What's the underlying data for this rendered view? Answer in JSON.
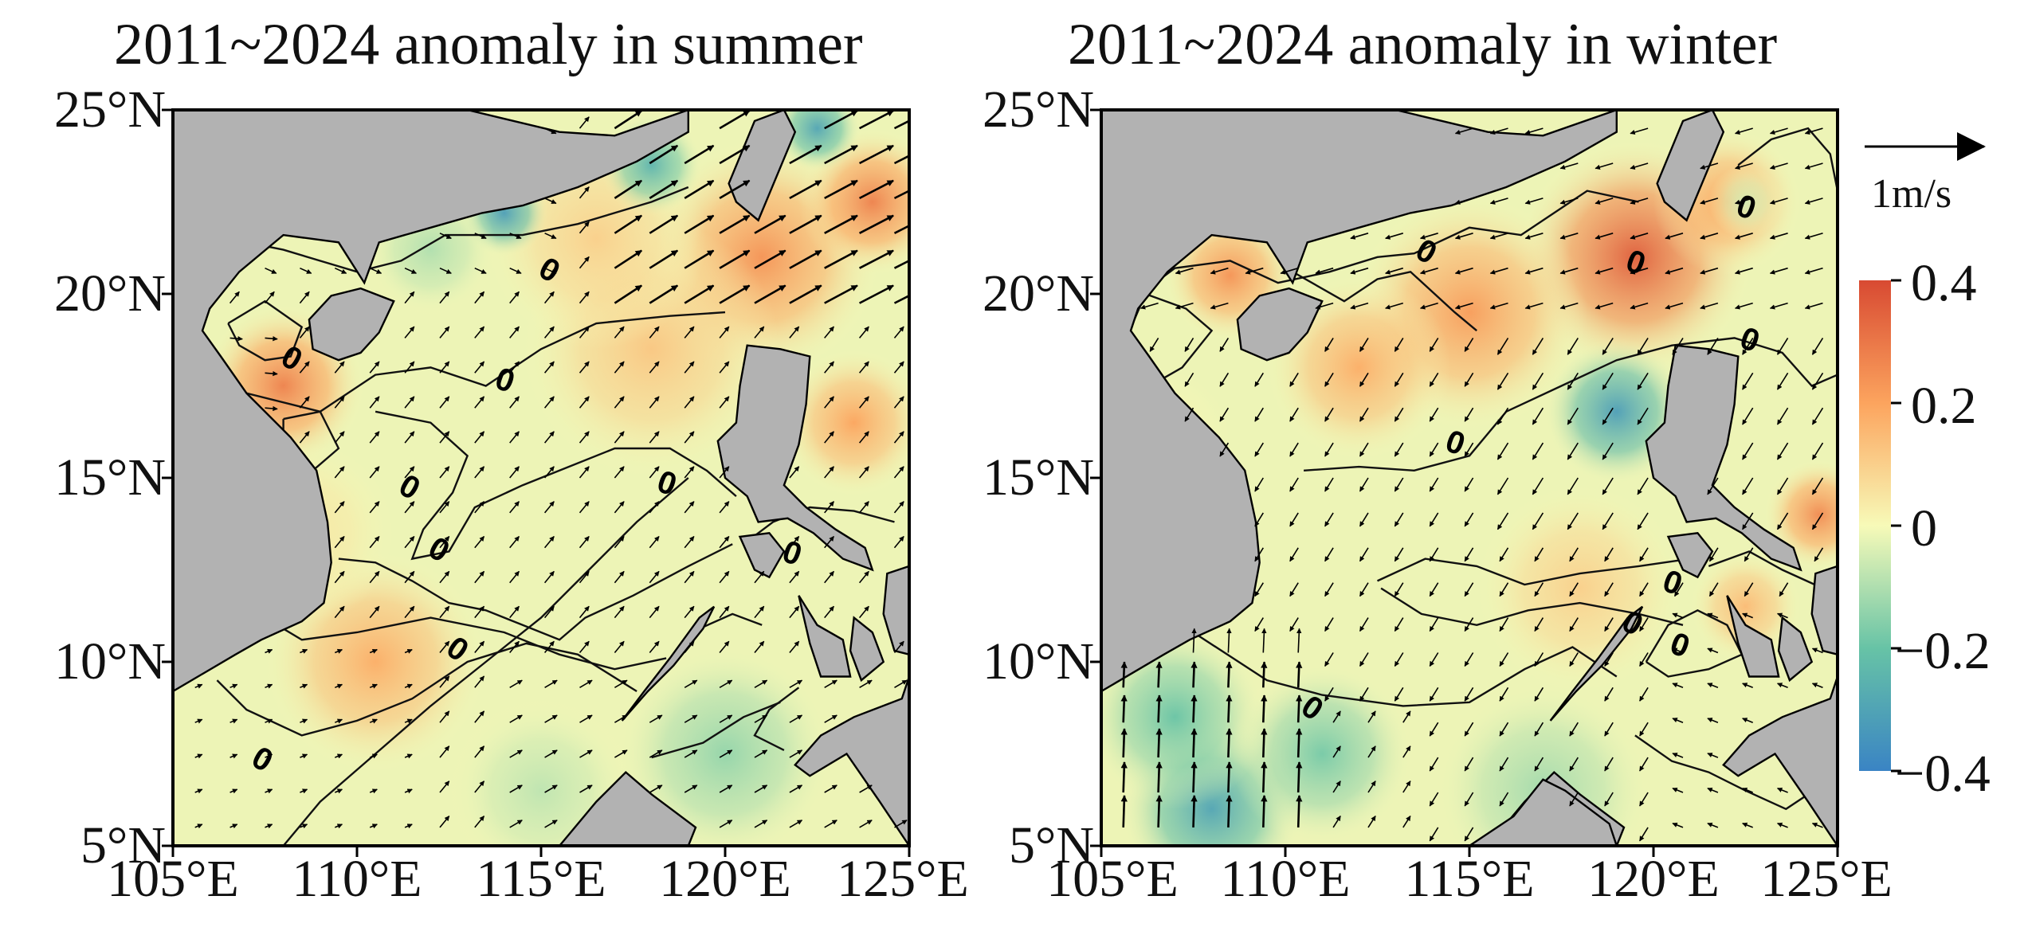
{
  "panels": [
    {
      "title": "2011~2024 anomaly in summer",
      "lat_labels": [
        "25°N",
        "20°N",
        "15°N",
        "10°N",
        "5°N"
      ],
      "lon_labels": [
        "105°E",
        "110°E",
        "115°E",
        "120°E",
        "125°E"
      ],
      "contour_label": "0",
      "anomaly_spots": [
        {
          "lon": 108.0,
          "lat": 17.5,
          "v": 0.28,
          "r": 2.2
        },
        {
          "lon": 110.5,
          "lat": 10.0,
          "v": 0.18,
          "r": 3.0
        },
        {
          "lon": 121.0,
          "lat": 21.0,
          "v": 0.24,
          "r": 3.2
        },
        {
          "lon": 124.0,
          "lat": 22.5,
          "v": 0.28,
          "r": 2.0
        },
        {
          "lon": 118.0,
          "lat": 18.5,
          "v": 0.12,
          "r": 3.5
        },
        {
          "lon": 116.5,
          "lat": 21.5,
          "v": 0.1,
          "r": 3.0
        },
        {
          "lon": 123.5,
          "lat": 16.5,
          "v": 0.2,
          "r": 2.0
        },
        {
          "lon": 114.0,
          "lat": 22.2,
          "v": -0.32,
          "r": 1.2
        },
        {
          "lon": 118.0,
          "lat": 23.5,
          "v": -0.25,
          "r": 1.4
        },
        {
          "lon": 122.5,
          "lat": 24.5,
          "v": -0.3,
          "r": 1.2
        },
        {
          "lon": 112.0,
          "lat": 21.2,
          "v": -0.1,
          "r": 1.8
        },
        {
          "lon": 120.0,
          "lat": 7.5,
          "v": -0.14,
          "r": 3.0
        },
        {
          "lon": 115.0,
          "lat": 6.5,
          "v": -0.08,
          "r": 2.5
        },
        {
          "lon": 108.5,
          "lat": 13.5,
          "v": 0.05,
          "r": 2.5
        }
      ]
    },
    {
      "title": "2011~2024 anomaly in winter",
      "lat_labels": [
        "25°N",
        "20°N",
        "15°N",
        "10°N",
        "5°N"
      ],
      "lon_labels": [
        "105°E",
        "110°E",
        "115°E",
        "120°E",
        "125°E"
      ],
      "contour_label": "0",
      "anomaly_spots": [
        {
          "lon": 119.5,
          "lat": 21.0,
          "v": 0.36,
          "r": 3.2
        },
        {
          "lon": 115.0,
          "lat": 19.5,
          "v": 0.22,
          "r": 3.2
        },
        {
          "lon": 112.0,
          "lat": 18.0,
          "v": 0.18,
          "r": 2.5
        },
        {
          "lon": 108.5,
          "lat": 20.5,
          "v": 0.24,
          "r": 1.8
        },
        {
          "lon": 122.0,
          "lat": 22.5,
          "v": 0.2,
          "r": 2.0
        },
        {
          "lon": 124.5,
          "lat": 14.0,
          "v": 0.26,
          "r": 1.5
        },
        {
          "lon": 118.0,
          "lat": 12.0,
          "v": 0.1,
          "r": 2.8
        },
        {
          "lon": 122.5,
          "lat": 11.5,
          "v": 0.15,
          "r": 1.5
        },
        {
          "lon": 119.0,
          "lat": 16.8,
          "v": -0.32,
          "r": 2.0
        },
        {
          "lon": 108.0,
          "lat": 6.0,
          "v": -0.3,
          "r": 2.5
        },
        {
          "lon": 107.0,
          "lat": 8.5,
          "v": -0.2,
          "r": 2.5
        },
        {
          "lon": 111.0,
          "lat": 7.5,
          "v": -0.18,
          "r": 2.5
        },
        {
          "lon": 117.0,
          "lat": 6.5,
          "v": -0.12,
          "r": 3.0
        },
        {
          "lon": 122.5,
          "lat": 22.5,
          "v": -0.05,
          "r": 1.0
        },
        {
          "lon": 106.5,
          "lat": 16.0,
          "v": 0.02,
          "r": 2.0
        }
      ]
    }
  ],
  "colorbar": {
    "ticks": [
      "0.4",
      "0.2",
      "0",
      "−0.2",
      "−0.4"
    ],
    "tick_values": [
      0.4,
      0.2,
      0,
      -0.2,
      -0.4
    ],
    "range": [
      -0.4,
      0.4
    ],
    "colors": [
      "#3a84c4",
      "#67c3a6",
      "#f7fab8",
      "#fca45e",
      "#d84a32"
    ]
  },
  "reference_vector": {
    "label": "1m/s"
  },
  "colors": {
    "land": "#b2b2b2",
    "frame": "#000000",
    "contour": "#111111",
    "arrow": "#000000"
  }
}
